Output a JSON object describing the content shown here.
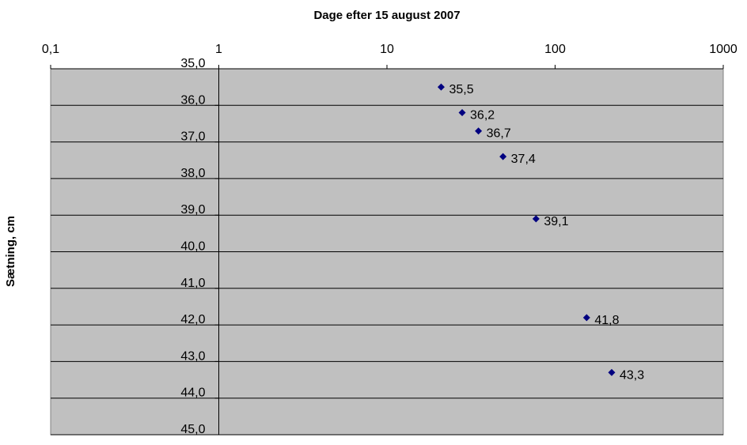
{
  "chart_data": {
    "type": "scatter",
    "xlabel": "Dage efter 15 august 2007",
    "ylabel": "Sætning, cm",
    "x_scale": "log",
    "x_axis_position": "top",
    "y_inverted": true,
    "xlim": [
      0.1,
      1000
    ],
    "ylim": [
      35.0,
      45.0
    ],
    "x_ticks": [
      0.1,
      1,
      10,
      100,
      1000
    ],
    "x_tick_labels": [
      "0,1",
      "1",
      "10",
      "100",
      "1000"
    ],
    "y_ticks": [
      35,
      36,
      37,
      38,
      39,
      40,
      41,
      42,
      43,
      44,
      45
    ],
    "y_tick_labels": [
      "35,0",
      "36,0",
      "37,0",
      "38,0",
      "39,0",
      "40,0",
      "41,0",
      "42,0",
      "43,0",
      "44,0",
      "45,0"
    ],
    "y_axis_crosses_x_at": 1,
    "grid": {
      "horizontal": true,
      "vertical": false
    },
    "colors": {
      "plot_background": "#c0c0c0",
      "marker": "#000080",
      "grid": "#000000"
    },
    "series": [
      {
        "points": [
          {
            "x": 21,
            "y": 35.5,
            "label": "35,5"
          },
          {
            "x": 28,
            "y": 36.2,
            "label": "36,2"
          },
          {
            "x": 35,
            "y": 36.7,
            "label": "36,7"
          },
          {
            "x": 49,
            "y": 37.4,
            "label": "37,4"
          },
          {
            "x": 77,
            "y": 39.1,
            "label": "39,1"
          },
          {
            "x": 154,
            "y": 41.8,
            "label": "41,8"
          },
          {
            "x": 217,
            "y": 43.3,
            "label": "43,3"
          }
        ]
      }
    ]
  }
}
